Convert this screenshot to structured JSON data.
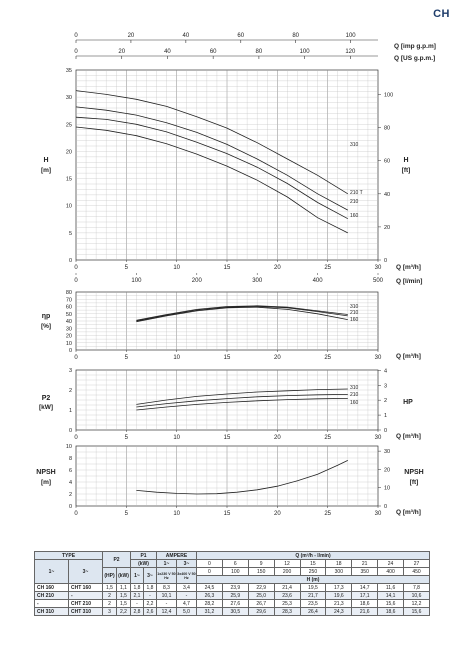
{
  "header": {
    "series_code": "CH"
  },
  "flow_axes": {
    "imp_gpm": {
      "ticks": [
        "0",
        "20",
        "40",
        "60",
        "80",
        "100"
      ],
      "label": "Q [imp g.p.m]"
    },
    "us_gpm": {
      "ticks": [
        "0",
        "20",
        "40",
        "60",
        "80",
        "100",
        "120"
      ],
      "label": "Q [US g.p.m.]"
    },
    "m3h": {
      "ticks": [
        "0",
        "5",
        "10",
        "15",
        "20",
        "25",
        "30"
      ],
      "label": "Q [m³/h]"
    },
    "lmin": {
      "ticks": [
        "0",
        "100",
        "200",
        "300",
        "400",
        "500"
      ],
      "label": "Q [l/min]"
    }
  },
  "chart_data": [
    {
      "type": "line",
      "ylabel": "H [m]",
      "y2label": "H [ft]",
      "xlim": [
        0,
        30
      ],
      "ylim": [
        0,
        35
      ],
      "y_ticks": [
        "0",
        "5",
        "10",
        "15",
        "20",
        "25",
        "30",
        "35"
      ],
      "y2_ticks": [
        "0",
        "20",
        "40",
        "60",
        "80",
        "100"
      ],
      "x_ticks": [
        "0",
        "5",
        "10",
        "15",
        "20",
        "25",
        "30"
      ],
      "series": [
        {
          "name": "310",
          "x": [
            0,
            3,
            6,
            9,
            12,
            15,
            18,
            21,
            24,
            27
          ],
          "y": [
            31.2,
            30.5,
            29.6,
            28.3,
            26.4,
            24.3,
            21.6,
            18.6,
            15.6,
            12.2
          ]
        },
        {
          "name": "210 T",
          "x": [
            0,
            3,
            6,
            9,
            12,
            15,
            18,
            21,
            24,
            27
          ],
          "y": [
            28.2,
            27.6,
            26.7,
            25.3,
            23.5,
            21.3,
            18.6,
            15.6,
            12.2,
            9.2
          ]
        },
        {
          "name": "210",
          "x": [
            0,
            3,
            6,
            9,
            12,
            15,
            18,
            21,
            24,
            27
          ],
          "y": [
            26.3,
            25.9,
            25.0,
            23.6,
            21.7,
            19.6,
            17.1,
            14.1,
            10.6,
            7.6
          ]
        },
        {
          "name": "160",
          "x": [
            0,
            3,
            6,
            9,
            12,
            15,
            18,
            21,
            24,
            27
          ],
          "y": [
            24.5,
            23.9,
            22.9,
            21.4,
            19.5,
            17.3,
            14.7,
            11.6,
            7.8,
            5.0
          ]
        }
      ]
    },
    {
      "type": "line",
      "ylabel": "ηp [%]",
      "xlim": [
        0,
        30
      ],
      "ylim": [
        0,
        80
      ],
      "y_ticks": [
        "0",
        "10",
        "20",
        "30",
        "40",
        "50",
        "60",
        "70",
        "80"
      ],
      "x_ticks": [
        "0",
        "5",
        "10",
        "15",
        "20",
        "25",
        "30"
      ],
      "series": [
        {
          "name": "310",
          "x": [
            6,
            9,
            12,
            15,
            18,
            21,
            24,
            27
          ],
          "y": [
            41,
            49,
            56,
            60,
            61,
            59,
            54,
            49
          ]
        },
        {
          "name": "210",
          "x": [
            6,
            9,
            12,
            15,
            18,
            21,
            24,
            27
          ],
          "y": [
            40,
            48,
            55,
            59,
            60,
            58,
            53,
            47
          ]
        },
        {
          "name": "160",
          "x": [
            6,
            9,
            12,
            15,
            18,
            21,
            24,
            27
          ],
          "y": [
            39,
            47,
            54,
            58,
            59,
            56,
            50,
            42
          ]
        }
      ]
    },
    {
      "type": "line",
      "ylabel": "P2 [kW]",
      "y2label": "HP",
      "xlim": [
        0,
        30
      ],
      "ylim": [
        0,
        3
      ],
      "y_ticks": [
        "0",
        "1",
        "2",
        "3"
      ],
      "y2_ticks": [
        "0",
        "1",
        "2",
        "3",
        "4"
      ],
      "x_ticks": [
        "0",
        "5",
        "10",
        "15",
        "20",
        "25",
        "30"
      ],
      "series": [
        {
          "name": "310",
          "x": [
            6,
            9,
            12,
            15,
            18,
            21,
            24,
            27
          ],
          "y": [
            1.28,
            1.5,
            1.68,
            1.8,
            1.9,
            1.96,
            2.02,
            2.05
          ]
        },
        {
          "name": "210",
          "x": [
            6,
            9,
            12,
            15,
            18,
            21,
            24,
            27
          ],
          "y": [
            1.15,
            1.32,
            1.46,
            1.57,
            1.66,
            1.72,
            1.76,
            1.78
          ]
        },
        {
          "name": "160",
          "x": [
            6,
            9,
            12,
            15,
            18,
            21,
            24,
            27
          ],
          "y": [
            1.0,
            1.15,
            1.28,
            1.38,
            1.46,
            1.52,
            1.56,
            1.58
          ]
        }
      ]
    },
    {
      "type": "line",
      "ylabel": "NPSH [m]",
      "y2label": "NPSH [ft]",
      "xlim": [
        0,
        30
      ],
      "ylim": [
        0,
        10
      ],
      "y_ticks": [
        "0",
        "2",
        "4",
        "6",
        "8",
        "10"
      ],
      "y2_ticks": [
        "0",
        "10",
        "20",
        "30"
      ],
      "x_ticks": [
        "0",
        "5",
        "10",
        "15",
        "20",
        "25",
        "30"
      ],
      "series": [
        {
          "x": [
            6,
            8,
            10,
            12,
            14,
            16,
            18,
            20,
            22,
            24,
            26,
            27
          ],
          "y": [
            2.6,
            2.3,
            2.1,
            2.0,
            2.05,
            2.3,
            2.7,
            3.3,
            4.2,
            5.3,
            6.8,
            7.6
          ]
        }
      ]
    }
  ],
  "curve_labels": {
    "h": [
      "310",
      "210 T",
      "210",
      "160"
    ],
    "eta": [
      "310",
      "210",
      "160"
    ],
    "p2": [
      "310",
      "210",
      "160"
    ]
  },
  "axis_texts": {
    "h_left": "H",
    "h_left_unit": "[m]",
    "h_right": "H",
    "h_right_unit": "[ft]",
    "eta_left": "ηp",
    "eta_left_unit": "[%]",
    "p2_left": "P2",
    "p2_left_unit": "[kW]",
    "p2_right": "HP",
    "npsh_left": "NPSH",
    "npsh_left_unit": "[m]",
    "npsh_right": "NPSH",
    "npsh_right_unit": "[ft]",
    "q_m3h": "Q [m³/h]"
  },
  "table": {
    "head_type": "TYPE",
    "head_1ph": "1~",
    "head_3ph": "3~",
    "head_p2": "P2",
    "head_p1": "P1",
    "head_p1_unit": "(kW)",
    "head_ampere": "AMPERE",
    "head_amp_1": "1~",
    "head_amp_3": "3~",
    "head_q": "Q (m³/h - l/min)",
    "unit_hp": "(HP)",
    "unit_kw": "(kW)",
    "unit_p1_1": "1~",
    "unit_p1_3": "3~",
    "unit_amp_1": "1x230 V 50 Hz",
    "unit_amp_3": "3x400 V 50 Hz",
    "q_m3h": [
      "0",
      "6",
      "9",
      "12",
      "15",
      "18",
      "21",
      "24",
      "27"
    ],
    "q_lmin": [
      "0",
      "100",
      "150",
      "200",
      "250",
      "300",
      "350",
      "400",
      "450"
    ],
    "h_label": "H (m)",
    "rows": [
      {
        "t1": "CH 160",
        "t3": "CHT 160",
        "hp": "1,5",
        "kw": "1,1",
        "p1a": "1,8",
        "p1b": "1,8",
        "a1": "8,3",
        "a3": "3,4",
        "h": [
          "24,5",
          "23,9",
          "22,9",
          "21,4",
          "19,5",
          "17,3",
          "14,7",
          "11,6",
          "7,8"
        ]
      },
      {
        "t1": "CH 210",
        "t3": "-",
        "hp": "2",
        "kw": "1,5",
        "p1a": "2,1",
        "p1b": "-",
        "a1": "10,1",
        "a3": "-",
        "h": [
          "26,3",
          "25,9",
          "25,0",
          "23,6",
          "21,7",
          "19,6",
          "17,1",
          "14,1",
          "10,6"
        ]
      },
      {
        "t1": "-",
        "t3": "CHT 210",
        "hp": "2",
        "kw": "1,5",
        "p1a": "-",
        "p1b": "2,2",
        "a1": "-",
        "a3": "4,7",
        "h": [
          "28,2",
          "27,6",
          "26,7",
          "25,3",
          "23,5",
          "21,3",
          "18,6",
          "15,6",
          "12,2"
        ]
      },
      {
        "t1": "CH 310",
        "t3": "CHT 310",
        "hp": "3",
        "kw": "2,2",
        "p1a": "2,8",
        "p1b": "2,6",
        "a1": "12,4",
        "a3": "5,0",
        "h": [
          "31,2",
          "30,5",
          "29,6",
          "28,3",
          "26,4",
          "24,3",
          "21,6",
          "18,6",
          "15,6"
        ]
      }
    ]
  }
}
